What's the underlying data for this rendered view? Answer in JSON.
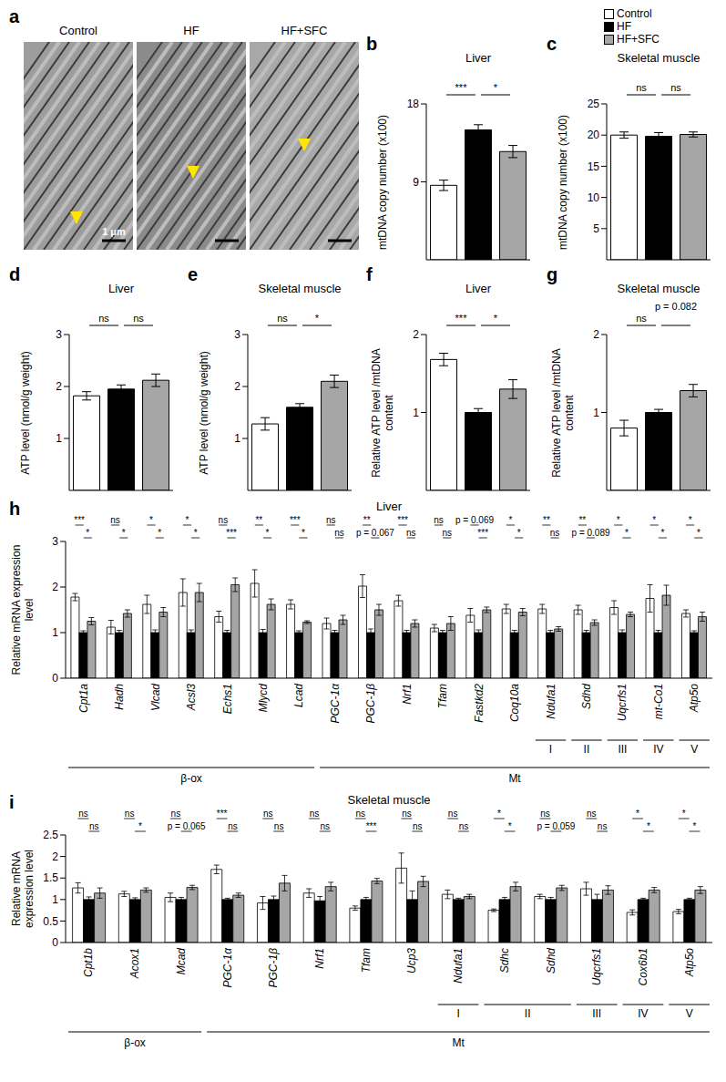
{
  "micrographs": {
    "panel": "a",
    "titles": [
      "Control",
      "HF",
      "HF+SFC"
    ],
    "scale_bar": "1 μm"
  },
  "chart_data": [
    {
      "type": "bar",
      "panel": "b",
      "title": "Liver",
      "y_label": "mtDNA copy number (x100)",
      "categories": [
        null
      ],
      "series": [
        {
          "name": "Control",
          "color": "#ffffff",
          "values": [
            8.6
          ],
          "errors": [
            0.6
          ]
        },
        {
          "name": "HF",
          "color": "#000000",
          "values": [
            15.0
          ],
          "errors": [
            0.6
          ]
        },
        {
          "name": "HF+SFC",
          "color": "#a6a6a6",
          "values": [
            12.5
          ],
          "errors": [
            0.7
          ]
        }
      ],
      "ylim": [
        0,
        18
      ],
      "yticks": [
        0,
        9,
        18
      ],
      "significance": [
        {
          "between": [
            "Control",
            "HF"
          ],
          "labels": [
            "***"
          ]
        },
        {
          "between": [
            "HF",
            "HF+SFC"
          ],
          "labels": [
            "*"
          ]
        }
      ]
    },
    {
      "type": "bar",
      "panel": "c",
      "title": "Skeletal muscle",
      "y_label": "mtDNA copy number (x100)",
      "categories": [
        null
      ],
      "series": [
        {
          "name": "Control",
          "color": "#ffffff",
          "values": [
            20.0
          ],
          "errors": [
            0.5
          ]
        },
        {
          "name": "HF",
          "color": "#000000",
          "values": [
            19.8
          ],
          "errors": [
            0.6
          ]
        },
        {
          "name": "HF+SFC",
          "color": "#a6a6a6",
          "values": [
            20.1
          ],
          "errors": [
            0.4
          ]
        }
      ],
      "ylim": [
        0,
        25
      ],
      "yticks": [
        0,
        5,
        10,
        15,
        20,
        25
      ],
      "significance": [
        {
          "between": [
            "Control",
            "HF"
          ],
          "labels": [
            "ns"
          ]
        },
        {
          "between": [
            "HF",
            "HF+SFC"
          ],
          "labels": [
            "ns"
          ]
        }
      ]
    },
    {
      "type": "bar",
      "panel": "d",
      "title": "Liver",
      "y_label": "ATP level (nmol/g weight)",
      "categories": [
        null
      ],
      "series": [
        {
          "name": "Control",
          "color": "#ffffff",
          "values": [
            1.82
          ],
          "errors": [
            0.08
          ]
        },
        {
          "name": "HF",
          "color": "#000000",
          "values": [
            1.95
          ],
          "errors": [
            0.08
          ]
        },
        {
          "name": "HF+SFC",
          "color": "#a6a6a6",
          "values": [
            2.12
          ],
          "errors": [
            0.12
          ]
        }
      ],
      "ylim": [
        0,
        3
      ],
      "yticks": [
        0,
        1,
        2,
        3
      ],
      "significance": [
        {
          "between": [
            "Control",
            "HF"
          ],
          "labels": [
            "ns"
          ]
        },
        {
          "between": [
            "HF",
            "HF+SFC"
          ],
          "labels": [
            "ns"
          ]
        }
      ]
    },
    {
      "type": "bar",
      "panel": "e",
      "title": "Skeletal muscle",
      "y_label": "ATP level (nmol/g weight)",
      "categories": [
        null
      ],
      "series": [
        {
          "name": "Control",
          "color": "#ffffff",
          "values": [
            1.28
          ],
          "errors": [
            0.12
          ]
        },
        {
          "name": "HF",
          "color": "#000000",
          "values": [
            1.6
          ],
          "errors": [
            0.07
          ]
        },
        {
          "name": "HF+SFC",
          "color": "#a6a6a6",
          "values": [
            2.1
          ],
          "errors": [
            0.12
          ]
        }
      ],
      "ylim": [
        0,
        3
      ],
      "yticks": [
        0,
        1,
        2,
        3
      ],
      "significance": [
        {
          "between": [
            "Control",
            "HF"
          ],
          "labels": [
            "ns"
          ]
        },
        {
          "between": [
            "HF",
            "HF+SFC"
          ],
          "labels": [
            "*"
          ]
        }
      ]
    },
    {
      "type": "bar",
      "panel": "f",
      "title": "Liver",
      "y_label": "Relative ATP level /mtDNA content",
      "categories": [
        null
      ],
      "series": [
        {
          "name": "Control",
          "color": "#ffffff",
          "values": [
            1.68
          ],
          "errors": [
            0.08
          ]
        },
        {
          "name": "HF",
          "color": "#000000",
          "values": [
            1.0
          ],
          "errors": [
            0.05
          ]
        },
        {
          "name": "HF+SFC",
          "color": "#a6a6a6",
          "values": [
            1.3
          ],
          "errors": [
            0.12
          ]
        }
      ],
      "ylim": [
        0,
        2
      ],
      "yticks": [
        0,
        1,
        2
      ],
      "significance": [
        {
          "between": [
            "Control",
            "HF"
          ],
          "labels": [
            "***"
          ]
        },
        {
          "between": [
            "HF",
            "HF+SFC"
          ],
          "labels": [
            "*"
          ]
        }
      ]
    },
    {
      "type": "bar",
      "panel": "g",
      "title": "Skeletal muscle",
      "y_label": "Relative ATP level /mtDNA content",
      "categories": [
        null
      ],
      "series": [
        {
          "name": "Control",
          "color": "#ffffff",
          "values": [
            0.8
          ],
          "errors": [
            0.1
          ]
        },
        {
          "name": "HF",
          "color": "#000000",
          "values": [
            1.0
          ],
          "errors": [
            0.04
          ]
        },
        {
          "name": "HF+SFC",
          "color": "#a6a6a6",
          "values": [
            1.28
          ],
          "errors": [
            0.08
          ]
        }
      ],
      "ylim": [
        0,
        2
      ],
      "yticks": [
        0,
        1,
        2
      ],
      "significance": [
        {
          "between": [
            "Control",
            "HF"
          ],
          "labels": [
            "ns"
          ]
        },
        {
          "between": [
            "HF",
            "HF+SFC"
          ],
          "labels": [
            "p = 0.082"
          ]
        }
      ]
    },
    {
      "type": "bar",
      "panel": "h",
      "title": "Liver",
      "y_label": "Relative mRNA expression level",
      "categories": [
        "Cpt1a",
        "Hadh",
        "Vlcad",
        "Acsl3",
        "Echs1",
        "Mlycd",
        "Lcad",
        "PGC-1α",
        "PGC-1β",
        "Nrf1",
        "Tfam",
        "Fastkd2",
        "Coq10a",
        "Ndufa1",
        "Sdhd",
        "Uqcrfs1",
        "mt-Co1",
        "Atp5o"
      ],
      "series": [
        {
          "name": "Control",
          "color": "#ffffff",
          "values": [
            1.78,
            1.12,
            1.62,
            1.88,
            1.35,
            2.08,
            1.62,
            1.2,
            2.02,
            1.7,
            1.1,
            1.38,
            1.52,
            1.52,
            1.5,
            1.55,
            1.75,
            1.42
          ],
          "errors": [
            0.08,
            0.15,
            0.2,
            0.3,
            0.12,
            0.3,
            0.1,
            0.12,
            0.25,
            0.12,
            0.08,
            0.15,
            0.1,
            0.1,
            0.1,
            0.15,
            0.3,
            0.08
          ]
        },
        {
          "name": "HF",
          "color": "#000000",
          "values": [
            1.0,
            1.0,
            1.0,
            1.0,
            1.0,
            1.0,
            1.0,
            1.0,
            1.0,
            1.0,
            1.0,
            1.0,
            1.0,
            1.0,
            1.0,
            1.0,
            1.0,
            1.0
          ],
          "errors": [
            0.04,
            0.05,
            0.06,
            0.06,
            0.05,
            0.07,
            0.04,
            0.05,
            0.08,
            0.05,
            0.05,
            0.06,
            0.05,
            0.05,
            0.05,
            0.06,
            0.05,
            0.04
          ]
        },
        {
          "name": "HF+SFC",
          "color": "#a6a6a6",
          "values": [
            1.25,
            1.42,
            1.45,
            1.88,
            2.05,
            1.62,
            1.23,
            1.28,
            1.5,
            1.2,
            1.2,
            1.5,
            1.45,
            1.08,
            1.22,
            1.4,
            1.82,
            1.35
          ],
          "errors": [
            0.08,
            0.08,
            0.1,
            0.2,
            0.15,
            0.12,
            0.03,
            0.1,
            0.12,
            0.08,
            0.15,
            0.06,
            0.08,
            0.05,
            0.06,
            0.05,
            0.22,
            0.1
          ]
        }
      ],
      "ylim": [
        0,
        3
      ],
      "yticks": [
        0,
        1,
        2,
        3
      ],
      "significance": [
        {
          "between": [
            "Control",
            "HF"
          ],
          "labels": [
            "***",
            "ns",
            "*",
            "*",
            "ns",
            "**",
            "***",
            "ns",
            "**",
            "***",
            "ns",
            "p = 0.069",
            "*",
            "**",
            "**",
            "*",
            "*",
            "*"
          ]
        },
        {
          "between": [
            "HF",
            "HF+SFC"
          ],
          "labels": [
            "*",
            "*",
            "*",
            "*",
            "***",
            "*",
            "*",
            "ns",
            "p = 0.067",
            "ns",
            "ns",
            "***",
            "*",
            "ns",
            "p = 0.089",
            "*",
            "*",
            "*"
          ]
        }
      ],
      "complexes": [
        {
          "label": "I",
          "from": 13,
          "to": 13
        },
        {
          "label": "II",
          "from": 14,
          "to": 14
        },
        {
          "label": "III",
          "from": 15,
          "to": 15
        },
        {
          "label": "IV",
          "from": 16,
          "to": 16
        },
        {
          "label": "V",
          "from": 17,
          "to": 17
        }
      ],
      "groups": [
        {
          "label": "β-ox",
          "from": 0,
          "to": 6
        },
        {
          "label": "Mt",
          "from": 7,
          "to": 17
        }
      ]
    },
    {
      "type": "bar",
      "panel": "i",
      "title": "Skeletal muscle",
      "y_label": "Relative mRNA expression level",
      "categories": [
        "Cpt1b",
        "Acox1",
        "Mcad",
        "PGC-1α",
        "PGC-1β",
        "Nrf1",
        "Tfam",
        "Ucp3",
        "Ndufa1",
        "Sdhc",
        "Sdhd",
        "Uqcrfs1",
        "Cox6b1",
        "Atp5o"
      ],
      "series": [
        {
          "name": "Control",
          "color": "#ffffff",
          "values": [
            1.27,
            1.13,
            1.05,
            1.7,
            0.92,
            1.15,
            0.8,
            1.73,
            1.12,
            0.75,
            1.07,
            1.25,
            0.7,
            0.72
          ],
          "errors": [
            0.12,
            0.06,
            0.1,
            0.1,
            0.15,
            0.1,
            0.05,
            0.35,
            0.1,
            0.03,
            0.05,
            0.15,
            0.06,
            0.05
          ]
        },
        {
          "name": "HF",
          "color": "#000000",
          "values": [
            1.0,
            1.0,
            1.0,
            1.0,
            1.0,
            0.97,
            1.0,
            1.0,
            1.0,
            1.0,
            1.0,
            1.0,
            1.0,
            1.0
          ],
          "errors": [
            0.06,
            0.04,
            0.05,
            0.03,
            0.08,
            0.1,
            0.05,
            0.2,
            0.03,
            0.05,
            0.05,
            0.12,
            0.03,
            0.03
          ]
        },
        {
          "name": "HF+SFC",
          "color": "#a6a6a6",
          "values": [
            1.15,
            1.22,
            1.28,
            1.1,
            1.38,
            1.3,
            1.43,
            1.42,
            1.07,
            1.3,
            1.27,
            1.22,
            1.22,
            1.22
          ],
          "errors": [
            0.12,
            0.05,
            0.05,
            0.05,
            0.18,
            0.1,
            0.06,
            0.12,
            0.05,
            0.1,
            0.06,
            0.1,
            0.06,
            0.08
          ]
        }
      ],
      "ylim": [
        0,
        2.5
      ],
      "yticks": [
        0,
        0.5,
        1,
        1.5,
        2,
        2.5
      ],
      "significance": [
        {
          "between": [
            "Control",
            "HF"
          ],
          "labels": [
            "ns",
            "ns",
            "ns",
            "***",
            "ns",
            "ns",
            "ns",
            "ns",
            "ns",
            "*",
            "ns",
            "ns",
            "*",
            "*"
          ]
        },
        {
          "between": [
            "HF",
            "HF+SFC"
          ],
          "labels": [
            "ns",
            "*",
            "p = 0.065",
            "ns",
            "ns",
            "ns",
            "***",
            "ns",
            "ns",
            "*",
            "p = 0.059",
            "ns",
            "*",
            "*"
          ]
        }
      ],
      "complexes": [
        {
          "label": "I",
          "from": 8,
          "to": 8
        },
        {
          "label": "II",
          "from": 9,
          "to": 10
        },
        {
          "label": "III",
          "from": 11,
          "to": 11
        },
        {
          "label": "IV",
          "from": 12,
          "to": 12
        },
        {
          "label": "V",
          "from": 13,
          "to": 13
        }
      ],
      "groups": [
        {
          "label": "β-ox",
          "from": 0,
          "to": 2
        },
        {
          "label": "Mt",
          "from": 3,
          "to": 13
        }
      ]
    }
  ]
}
